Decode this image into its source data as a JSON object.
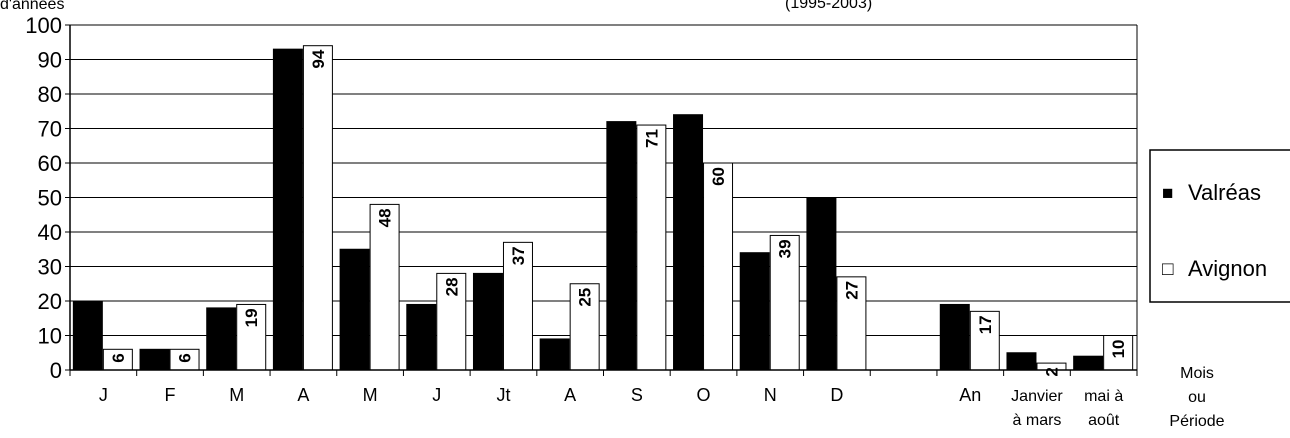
{
  "chart_data": {
    "type": "bar",
    "title": "",
    "title_fragment": "(1995-2003)",
    "ylabel": "d'années",
    "xlabel_lines": [
      "Mois",
      "ou",
      "Période"
    ],
    "ylim": [
      0,
      100
    ],
    "yticks": [
      0,
      10,
      20,
      30,
      40,
      50,
      60,
      70,
      80,
      90,
      100
    ],
    "grid": true,
    "legend_position": "right",
    "categories": [
      [
        "J"
      ],
      [
        "F"
      ],
      [
        "M"
      ],
      [
        "A"
      ],
      [
        "M"
      ],
      [
        "J"
      ],
      [
        "Jt"
      ],
      [
        "A"
      ],
      [
        "S"
      ],
      [
        "O"
      ],
      [
        "N"
      ],
      [
        "D"
      ],
      [
        ""
      ],
      [
        "An"
      ],
      [
        "Janvier",
        "à mars"
      ],
      [
        "mai à",
        "août"
      ]
    ],
    "series": [
      {
        "name": "Valréas",
        "color": "#000000",
        "values": [
          20,
          6,
          18,
          93,
          35,
          19,
          28,
          9,
          72,
          74,
          34,
          50,
          null,
          19,
          5,
          4
        ],
        "labels": [
          "20",
          "6",
          "18",
          "93",
          "35",
          "19",
          "28",
          "9",
          "72",
          "74",
          "34",
          "50",
          "",
          "19",
          "5",
          "4"
        ]
      },
      {
        "name": "Avignon",
        "color": "#ffffff",
        "values": [
          6,
          6,
          19,
          94,
          48,
          28,
          37,
          25,
          71,
          60,
          39,
          27,
          null,
          17,
          2,
          10
        ],
        "labels": [
          "6",
          "6",
          "19",
          "94",
          "48",
          "28",
          "37",
          "25",
          "71",
          "60",
          "39",
          "27",
          "",
          "17",
          "2",
          "10"
        ]
      }
    ],
    "legend_markers": [
      "■",
      "□"
    ]
  }
}
